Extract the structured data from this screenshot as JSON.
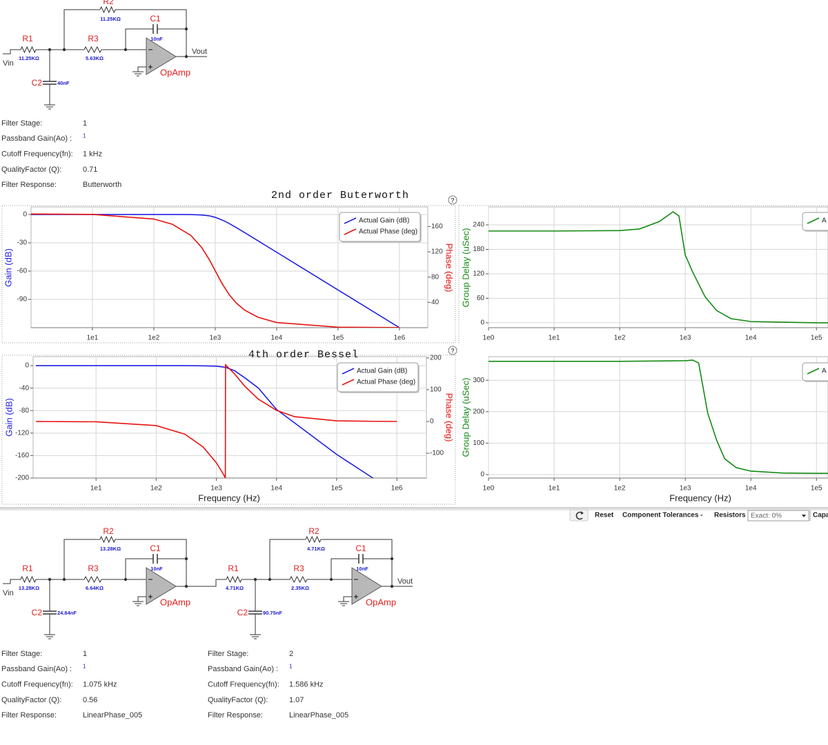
{
  "help_icon": "?",
  "design_top": {
    "circuit": {
      "vin": "Vin",
      "vout": "Vout",
      "stages": [
        {
          "R1": {
            "name": "R1",
            "value": "11.25KΩ"
          },
          "R2": {
            "name": "R2",
            "value": "11.25KΩ"
          },
          "R3": {
            "name": "R3",
            "value": "5.63KΩ"
          },
          "C1": {
            "name": "C1",
            "value": "10nF"
          },
          "C2": {
            "name": "C2",
            "value": "40nF"
          },
          "opamp": "OpAmp"
        }
      ]
    },
    "info": [
      [
        {
          "label": "Filter Stage:",
          "value": "1"
        },
        {
          "label": "Passband Gain(Ao) :",
          "value": "1"
        },
        {
          "label": "Cutoff Frequency(fn):",
          "value": "1 kHz"
        },
        {
          "label": "QualityFactor (Q):",
          "value": "0.71"
        },
        {
          "label": "Filter Response:",
          "value": "Butterworth"
        }
      ]
    ]
  },
  "chart_data": [
    {
      "type": "line",
      "title": "2nd order Buterworth",
      "ylabel": "Gain (dB)",
      "y2label": "Phase (deg)",
      "xscale": "log",
      "grid": true,
      "legend": "upper right",
      "x": [
        1,
        10,
        100,
        200,
        400,
        600,
        800,
        1000,
        1300,
        1700,
        2200,
        3000,
        5000,
        10000,
        100000,
        1000000
      ],
      "series": [
        {
          "name": "Actual Gain (dB)",
          "color": "#1f1fe0",
          "values": [
            0,
            0,
            0,
            -0.01,
            -0.11,
            -0.52,
            -1.41,
            -3.01,
            -5.86,
            -9.71,
            -13.88,
            -19.14,
            -27.96,
            -40,
            -80,
            -120
          ]
        },
        {
          "name": "Actual Phase (deg)",
          "color": "#e81010",
          "axis": "y2",
          "values": [
            179.92,
            179.19,
            171.87,
            163.6,
            146,
            127,
            107.7,
            90,
            69.4,
            51.8,
            39,
            27.9,
            16.4,
            8.1,
            0.81,
            0.08
          ]
        }
      ],
      "xlim": [
        1,
        2900000
      ],
      "xticks": [
        {
          "value": 10,
          "label": "1e1"
        },
        {
          "value": 100,
          "label": "1e2"
        },
        {
          "value": 1000,
          "label": "1e3"
        },
        {
          "value": 10000,
          "label": "1e4"
        },
        {
          "value": 100000,
          "label": "1e5"
        },
        {
          "value": 1000000,
          "label": "1e6"
        }
      ],
      "ylim": [
        -120,
        8
      ],
      "yticks": [
        0,
        -30,
        -60,
        -90
      ],
      "y2lim": [
        0,
        191
      ],
      "y2ticks": [
        160,
        120,
        80,
        40
      ]
    },
    {
      "type": "line",
      "ylabel": "Group Delay (uSec)",
      "xscale": "log",
      "grid": true,
      "legend": "upper right",
      "x": [
        1,
        10,
        100,
        200,
        400,
        650,
        800,
        1000,
        1300,
        2000,
        3000,
        5000,
        10000,
        100000,
        150000
      ],
      "series": [
        {
          "name": "A",
          "color": "#138a13",
          "values": [
            225,
            225,
            226,
            230,
            248,
            272,
            262,
            166,
            124,
            64,
            30,
            10,
            3,
            0,
            0
          ]
        }
      ],
      "xlim": [
        1,
        150000
      ],
      "xticks": [
        {
          "value": 1,
          "label": "1e0"
        },
        {
          "value": 10,
          "label": "1e1"
        },
        {
          "value": 100,
          "label": "1e2"
        },
        {
          "value": 1000,
          "label": "1e3"
        },
        {
          "value": 10000,
          "label": "1e4"
        },
        {
          "value": 100000,
          "label": "1e5"
        }
      ],
      "ylim": [
        -12,
        284
      ],
      "yticks": [
        0,
        60,
        120,
        180,
        240
      ]
    },
    {
      "type": "line",
      "title": "4th order Bessel",
      "xlabel": "Frequency (Hz)",
      "ylabel": "Gain (dB)",
      "y2label": "Phase (deg)",
      "xscale": "log",
      "grid": true,
      "legend": "upper right",
      "x": [
        1,
        10,
        100,
        300,
        600,
        1000,
        1300,
        1410,
        1420,
        2000,
        3000,
        5000,
        10000,
        20000,
        100000,
        400000,
        1000000
      ],
      "series": [
        {
          "name": "Actual Gain (dB)",
          "color": "#1f1fe0",
          "values": [
            0,
            0,
            0,
            0,
            -0.3,
            -1,
            -2.5,
            -3,
            -3,
            -9,
            -22,
            -40,
            -78,
            -102,
            -158,
            -200,
            null
          ]
        },
        {
          "name": "Actual Phase (deg)",
          "color": "#e81010",
          "axis": "y2",
          "values": [
            0,
            -1,
            -13,
            -40,
            -80,
            -130,
            -165,
            -178,
            178,
            150,
            110,
            70,
            35,
            15,
            2,
            0.5,
            0
          ]
        }
      ],
      "xlim": [
        0.9,
        3100000
      ],
      "xticks": [
        {
          "value": 10,
          "label": "1e1"
        },
        {
          "value": 100,
          "label": "1e2"
        },
        {
          "value": 1000,
          "label": "1e3"
        },
        {
          "value": 10000,
          "label": "1e4"
        },
        {
          "value": 100000,
          "label": "1e5"
        },
        {
          "value": 1000000,
          "label": "1e6"
        }
      ],
      "ylim": [
        -200,
        16
      ],
      "yticks": [
        0,
        -40,
        -80,
        -120,
        -160,
        -200
      ],
      "y2lim": [
        -178,
        204
      ],
      "y2ticks": [
        200,
        100,
        0,
        -100
      ]
    },
    {
      "type": "line",
      "xlabel": "Frequency (Hz)",
      "ylabel": "Group Delay (uSec)",
      "xscale": "log",
      "grid": true,
      "legend": "upper right",
      "x": [
        1,
        10,
        100,
        1000,
        1300,
        1600,
        2200,
        3000,
        4000,
        6000,
        10000,
        30000,
        100000,
        150000
      ],
      "series": [
        {
          "name": "A",
          "color": "#138a13",
          "values": [
            360,
            360,
            360,
            362,
            364,
            355,
            195,
            110,
            50,
            22,
            11,
            5,
            4,
            4
          ]
        }
      ],
      "xlim": [
        1,
        150000
      ],
      "xticks": [
        {
          "value": 1,
          "label": "1e0"
        },
        {
          "value": 10,
          "label": "1e1"
        },
        {
          "value": 100,
          "label": "1e2"
        },
        {
          "value": 1000,
          "label": "1e3"
        },
        {
          "value": 10000,
          "label": "1e4"
        },
        {
          "value": 100000,
          "label": "1e5"
        }
      ],
      "ylim": [
        -11,
        375
      ],
      "yticks": [
        0,
        100,
        200,
        300
      ]
    }
  ],
  "toolbar": {
    "reset": "Reset",
    "tolerances": "Component Tolerances -",
    "resistors": "Resistors",
    "resistor_tolerance": "Exact: 0%",
    "capacitors": "Capa"
  },
  "design_bottom": {
    "circuit": {
      "vin": "Vin",
      "vout": "Vout",
      "stages": [
        {
          "R1": {
            "name": "R1",
            "value": "13.28KΩ"
          },
          "R2": {
            "name": "R2",
            "value": "13.28KΩ"
          },
          "R3": {
            "name": "R3",
            "value": "6.64KΩ"
          },
          "C1": {
            "name": "C1",
            "value": "10nF"
          },
          "C2": {
            "name": "C2",
            "value": "24.84nF"
          },
          "opamp": "OpAmp"
        },
        {
          "R1": {
            "name": "R1",
            "value": "4.71KΩ"
          },
          "R2": {
            "name": "R2",
            "value": "4.71KΩ"
          },
          "R3": {
            "name": "R3",
            "value": "2.35KΩ"
          },
          "C1": {
            "name": "C1",
            "value": "10nF"
          },
          "C2": {
            "name": "C2",
            "value": "90.75nF"
          },
          "opamp": "OpAmp"
        }
      ]
    },
    "info": [
      [
        {
          "label": "Filter Stage:",
          "value": "1"
        },
        {
          "label": "Passband Gain(Ao) :",
          "value": "1"
        },
        {
          "label": "Cutoff Frequency(fn):",
          "value": "1.075 kHz"
        },
        {
          "label": "QualityFactor (Q):",
          "value": "0.56"
        },
        {
          "label": "Filter Response:",
          "value": "LinearPhase_005"
        }
      ],
      [
        {
          "label": "Filter Stage:",
          "value": "2"
        },
        {
          "label": "Passband Gain(Ao) :",
          "value": "1"
        },
        {
          "label": "Cutoff Frequency(fn):",
          "value": "1.586 kHz"
        },
        {
          "label": "QualityFactor (Q):",
          "value": "1.07"
        },
        {
          "label": "Filter Response:",
          "value": "LinearPhase_005"
        }
      ]
    ]
  }
}
